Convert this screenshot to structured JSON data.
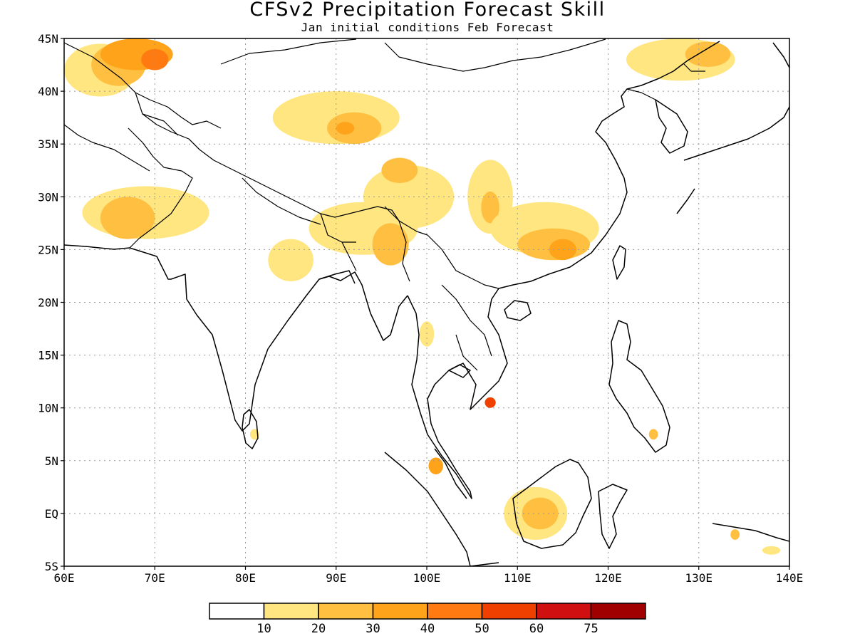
{
  "title": "CFSv2 Precipitation Forecast Skill",
  "subtitle": "Jan initial conditions  Feb Forecast",
  "map": {
    "lon_range": [
      60,
      140
    ],
    "lat_range": [
      -5,
      45
    ],
    "lat_labels": [
      "5S",
      "EQ",
      "5N",
      "10N",
      "15N",
      "20N",
      "25N",
      "30N",
      "35N",
      "40N",
      "45N"
    ],
    "lon_labels": [
      "60E",
      "70E",
      "80E",
      "90E",
      "100E",
      "110E",
      "120E",
      "130E",
      "140E"
    ],
    "gridlines": "dotted"
  },
  "colorbar": {
    "thresholds": [
      "10",
      "20",
      "30",
      "40",
      "50",
      "60",
      "75"
    ],
    "colors": [
      "#ffffff",
      "#ffe680",
      "#ffbf40",
      "#ffa31a",
      "#ff7a10",
      "#f04000",
      "#d01010",
      "#a00000"
    ]
  },
  "skill_regions": [
    {
      "level": 1,
      "lon": 64,
      "lat": 42,
      "rx": 4,
      "ry": 2.5
    },
    {
      "level": 2,
      "lon": 66,
      "lat": 42.5,
      "rx": 3,
      "ry": 2
    },
    {
      "level": 3,
      "lon": 68,
      "lat": 43.5,
      "rx": 4,
      "ry": 1.5
    },
    {
      "level": 4,
      "lon": 70,
      "lat": 43,
      "rx": 1.5,
      "ry": 1
    },
    {
      "level": 1,
      "lon": 69,
      "lat": 28.5,
      "rx": 7,
      "ry": 2.5
    },
    {
      "level": 2,
      "lon": 67,
      "lat": 28,
      "rx": 3,
      "ry": 2
    },
    {
      "level": 1,
      "lon": 90,
      "lat": 37.5,
      "rx": 7,
      "ry": 2.5
    },
    {
      "level": 2,
      "lon": 92,
      "lat": 36.5,
      "rx": 3,
      "ry": 1.5
    },
    {
      "level": 3,
      "lon": 91,
      "lat": 36.5,
      "rx": 1,
      "ry": 0.6
    },
    {
      "level": 1,
      "lon": 98,
      "lat": 30,
      "rx": 5,
      "ry": 3
    },
    {
      "level": 2,
      "lon": 97,
      "lat": 32.5,
      "rx": 2,
      "ry": 1.2
    },
    {
      "level": 1,
      "lon": 93,
      "lat": 27,
      "rx": 6,
      "ry": 2.5
    },
    {
      "level": 2,
      "lon": 96,
      "lat": 25.5,
      "rx": 2,
      "ry": 2
    },
    {
      "level": 1,
      "lon": 107,
      "lat": 30,
      "rx": 2.5,
      "ry": 3.5
    },
    {
      "level": 2,
      "lon": 107,
      "lat": 29,
      "rx": 1,
      "ry": 1.5
    },
    {
      "level": 1,
      "lon": 113,
      "lat": 27,
      "rx": 6,
      "ry": 2.5
    },
    {
      "level": 2,
      "lon": 114,
      "lat": 25.5,
      "rx": 4,
      "ry": 1.5
    },
    {
      "level": 3,
      "lon": 115,
      "lat": 25,
      "rx": 1.5,
      "ry": 1
    },
    {
      "level": 1,
      "lon": 128,
      "lat": 43,
      "rx": 6,
      "ry": 2
    },
    {
      "level": 2,
      "lon": 131,
      "lat": 43.5,
      "rx": 2.5,
      "ry": 1.2
    },
    {
      "level": 1,
      "lon": 85,
      "lat": 24,
      "rx": 2.5,
      "ry": 2
    },
    {
      "level": 1,
      "lon": 112,
      "lat": 0,
      "rx": 3.5,
      "ry": 2.5
    },
    {
      "level": 2,
      "lon": 112.5,
      "lat": 0,
      "rx": 2,
      "ry": 1.5
    },
    {
      "level": 1,
      "lon": 100,
      "lat": 17,
      "rx": 0.8,
      "ry": 1.2
    },
    {
      "level": 3,
      "lon": 101,
      "lat": 4.5,
      "rx": 0.8,
      "ry": 0.8
    },
    {
      "level": 5,
      "lon": 107,
      "lat": 10.5,
      "rx": 0.6,
      "ry": 0.5
    },
    {
      "level": 2,
      "lon": 125,
      "lat": 7.5,
      "rx": 0.5,
      "ry": 0.5
    },
    {
      "level": 1,
      "lon": 81,
      "lat": 7.5,
      "rx": 0.5,
      "ry": 0.5
    },
    {
      "level": 2,
      "lon": 134,
      "lat": -2,
      "rx": 0.5,
      "ry": 0.5
    },
    {
      "level": 1,
      "lon": 138,
      "lat": -3.5,
      "rx": 1,
      "ry": 0.4
    }
  ]
}
